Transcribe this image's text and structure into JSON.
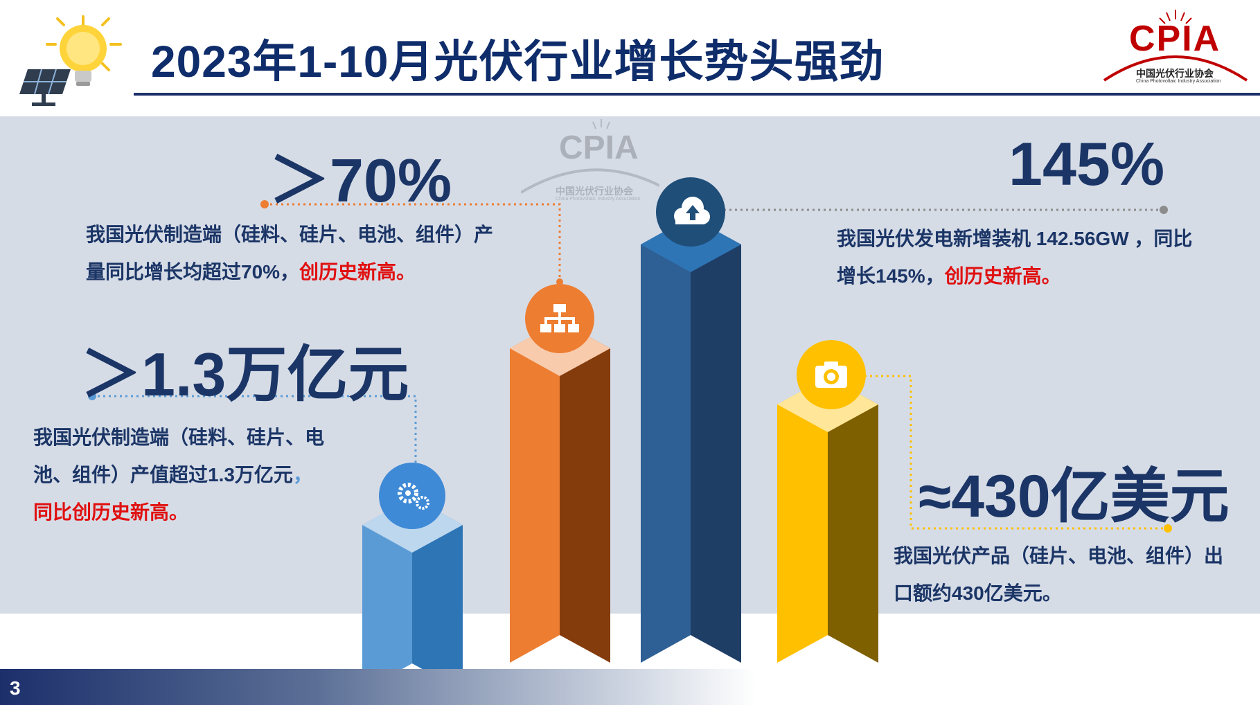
{
  "slide": {
    "title": "2023年1-10月光伏行业增长势头强劲",
    "page_number": "3"
  },
  "logo": {
    "text": "CPIA",
    "subtitle_cn": "中国光伏行业协会",
    "subtitle_en": "China Photovoltaic Industry Association"
  },
  "watermark": {
    "text": "CPIA",
    "subtitle_cn": "中国光伏行业协会",
    "subtitle_en": "China Photovoltaic Industry Association"
  },
  "stats": {
    "output": {
      "big": "＞70%",
      "line1": "我国光伏制造端（硅料、硅片、电池、组件）产",
      "line2_plain": "量同比增长均超过70%，",
      "line2_red": "创历史新高。"
    },
    "value": {
      "big": "＞1.3万亿元",
      "line1": "我国光伏制造端（硅料、硅片、电",
      "line2_plain": "池、组件）产值超过1.3万亿元",
      "line2_comma": "，",
      "line3_red": "同比创历史新高。"
    },
    "install": {
      "big": "145%",
      "line1": "我国光伏发电新增装机 142.56GW ，同比",
      "line2_plain": "增长145%，",
      "line2_red": "创历史新高。"
    },
    "export": {
      "big": "≈430亿美元",
      "line1": "我国光伏产品（硅片、电池、组件）出",
      "line2": "口额约430亿美元。"
    }
  },
  "colors": {
    "title": "#0f2d6b",
    "text": "#1b3566",
    "highlight": "#e01010",
    "panel": "#d6dce6",
    "bar_blue_light": "#5b9bd5",
    "bar_orange": "#ed7d31",
    "bar_navy": "#1f4e79",
    "bar_gold": "#ffc000",
    "logo_red": "#c00000"
  },
  "icons": {
    "bar1": "gears-icon",
    "bar2": "org-chart-icon",
    "bar3": "cloud-upload-icon",
    "bar4": "camera-icon",
    "header": "solar-panel-bulb-icon"
  }
}
